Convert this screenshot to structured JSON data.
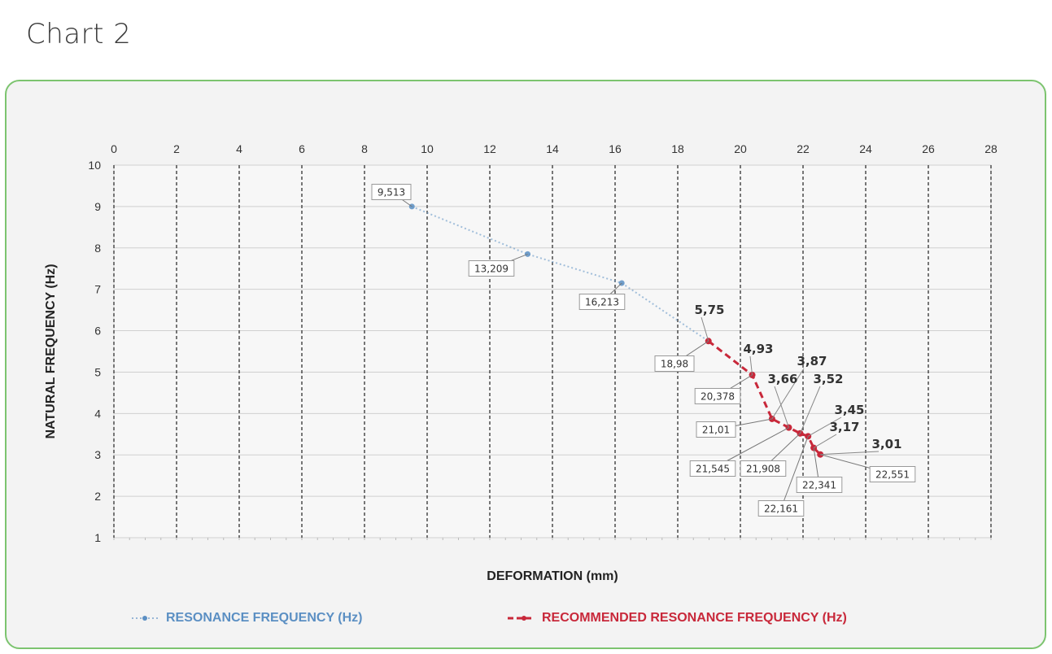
{
  "page": {
    "title": "Chart  2"
  },
  "colors": {
    "frame": "#7cc46f",
    "resonance": "#5b8fc3",
    "recommended": "#c8283a",
    "grid": "#222222"
  },
  "chart_data": {
    "type": "scatter",
    "xlabel": "DEFORMATION (mm)",
    "ylabel": "NATURAL FREQUENCY (Hz)",
    "xlim": [
      0,
      28
    ],
    "ylim": [
      1,
      10
    ],
    "x_ticks": [
      "0",
      "2",
      "4",
      "6",
      "8",
      "10",
      "12",
      "14",
      "16",
      "18",
      "20",
      "22",
      "24",
      "26",
      "28"
    ],
    "y_ticks": [
      "1",
      "2",
      "3",
      "4",
      "5",
      "6",
      "7",
      "8",
      "9",
      "10"
    ],
    "x_axis_position": "top",
    "grid": true,
    "legend_position": "bottom",
    "series": [
      {
        "name": "RESONANCE FREQUENCY (Hz)",
        "color": "#5b8fc3",
        "style": "dotted",
        "points": [
          {
            "x": 9.513,
            "y": 9.0,
            "label": "9,513"
          },
          {
            "x": 13.209,
            "y": 7.85,
            "label": "13,209"
          },
          {
            "x": 16.213,
            "y": 7.15,
            "label": "16,213"
          },
          {
            "x": 18.98,
            "y": 5.75
          }
        ]
      },
      {
        "name": "RECOMMENDED RESONANCE FREQUENCY (Hz)",
        "color": "#c8283a",
        "style": "dashed",
        "points": [
          {
            "x": 18.98,
            "y": 5.75,
            "xlabel": "18,98",
            "ylabel": "5,75"
          },
          {
            "x": 20.378,
            "y": 4.93,
            "xlabel": "20,378",
            "ylabel": "4,93"
          },
          {
            "x": 21.01,
            "y": 3.87,
            "xlabel": "21,01",
            "ylabel": "3,87"
          },
          {
            "x": 21.545,
            "y": 3.66,
            "xlabel": "21,545",
            "ylabel": "3,66"
          },
          {
            "x": 21.908,
            "y": 3.52,
            "xlabel": "21,908",
            "ylabel": "3,52"
          },
          {
            "x": 22.161,
            "y": 3.45,
            "xlabel": "22,161",
            "ylabel": "3,45"
          },
          {
            "x": 22.341,
            "y": 3.17,
            "xlabel": "22,341",
            "ylabel": "3,17"
          },
          {
            "x": 22.551,
            "y": 3.01,
            "xlabel": "22,551",
            "ylabel": "3,01"
          }
        ]
      }
    ]
  }
}
